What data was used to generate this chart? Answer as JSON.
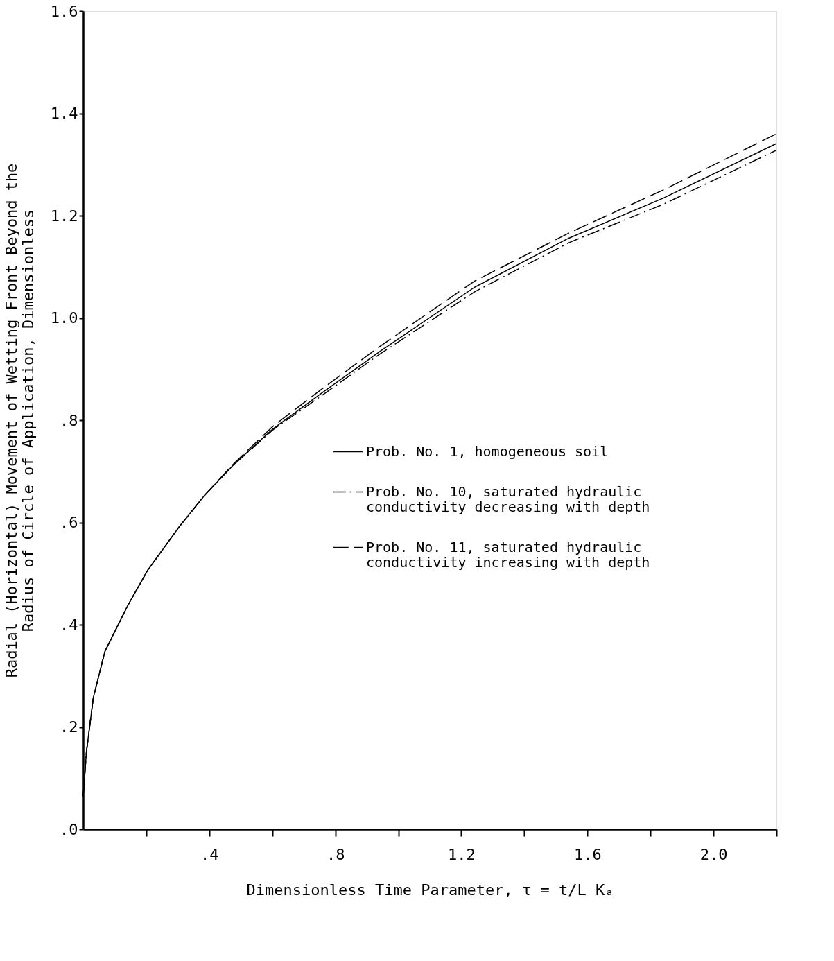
{
  "chart_data": {
    "type": "line",
    "xlabel": "Dimensionless Time Parameter, τ = t/L Kₐ",
    "ylabel": "Radial (Horizontal) Movement of Wetting Front Beyond the Radius of Circle of Application, Dimensionless",
    "xlim": [
      0,
      2.2
    ],
    "xticks": [
      {
        "value": 0.2,
        "label": null
      },
      {
        "value": 0.4,
        "label": ".4"
      },
      {
        "value": 0.6,
        "label": null
      },
      {
        "value": 0.8,
        "label": ".8"
      },
      {
        "value": 1.0,
        "label": null
      },
      {
        "value": 1.2,
        "label": "1.2"
      },
      {
        "value": 1.4,
        "label": null
      },
      {
        "value": 1.6,
        "label": "1.6"
      },
      {
        "value": 1.8,
        "label": null
      },
      {
        "value": 2.0,
        "label": "2.0"
      },
      {
        "value": 2.2,
        "label": null
      }
    ],
    "ylim": [
      0,
      1.6
    ],
    "yticks": [
      {
        "value": 0,
        "label": ".0"
      },
      {
        "value": 0.2,
        "label": ".2"
      },
      {
        "value": 0.4,
        "label": ".4"
      },
      {
        "value": 0.6,
        "label": ".6"
      },
      {
        "value": 0.8,
        "label": ".8"
      },
      {
        "value": 1.0,
        "label": "1.0"
      },
      {
        "value": 1.2,
        "label": "1.2"
      },
      {
        "value": 1.4,
        "label": "1.4"
      },
      {
        "value": 1.6,
        "label": "1.6"
      }
    ],
    "grid": false,
    "legend": "right",
    "marker": "none",
    "series": [
      {
        "name": "Prob. No. 1, homogeneous soil",
        "color": "#000000",
        "line_style": "solid",
        "x": [
          0,
          0.01,
          0.032,
          0.069,
          0.141,
          0.204,
          0.304,
          0.385,
          0.476,
          0.602,
          0.766,
          0.943,
          1.242,
          1.541,
          1.84,
          2.2
        ],
        "values": [
          0.064,
          0.15,
          0.257,
          0.348,
          0.437,
          0.506,
          0.591,
          0.653,
          0.712,
          0.783,
          0.857,
          0.935,
          1.06,
          1.156,
          1.234,
          1.341
        ]
      },
      {
        "name": "Prob. No. 10, saturated hydraulic conductivity decreasing with depth",
        "color": "#000000",
        "line_style": "dashdot",
        "x": [
          0,
          0.01,
          0.032,
          0.069,
          0.141,
          0.204,
          0.304,
          0.385,
          0.476,
          0.602,
          0.766,
          0.943,
          1.242,
          1.541,
          1.84,
          2.2
        ],
        "values": [
          0.064,
          0.15,
          0.257,
          0.348,
          0.437,
          0.506,
          0.591,
          0.653,
          0.712,
          0.781,
          0.852,
          0.93,
          1.051,
          1.147,
          1.222,
          1.328
        ]
      },
      {
        "name": "Prob. No. 11, saturated hydraulic conductivity increasing with depth",
        "color": "#000000",
        "line_style": "dashed",
        "x": [
          0,
          0.01,
          0.032,
          0.069,
          0.141,
          0.204,
          0.304,
          0.385,
          0.476,
          0.602,
          0.766,
          0.943,
          1.242,
          1.541,
          1.84,
          2.2
        ],
        "values": [
          0.064,
          0.15,
          0.257,
          0.348,
          0.437,
          0.506,
          0.591,
          0.653,
          0.714,
          0.788,
          0.865,
          0.945,
          1.072,
          1.166,
          1.25,
          1.36
        ]
      }
    ]
  }
}
